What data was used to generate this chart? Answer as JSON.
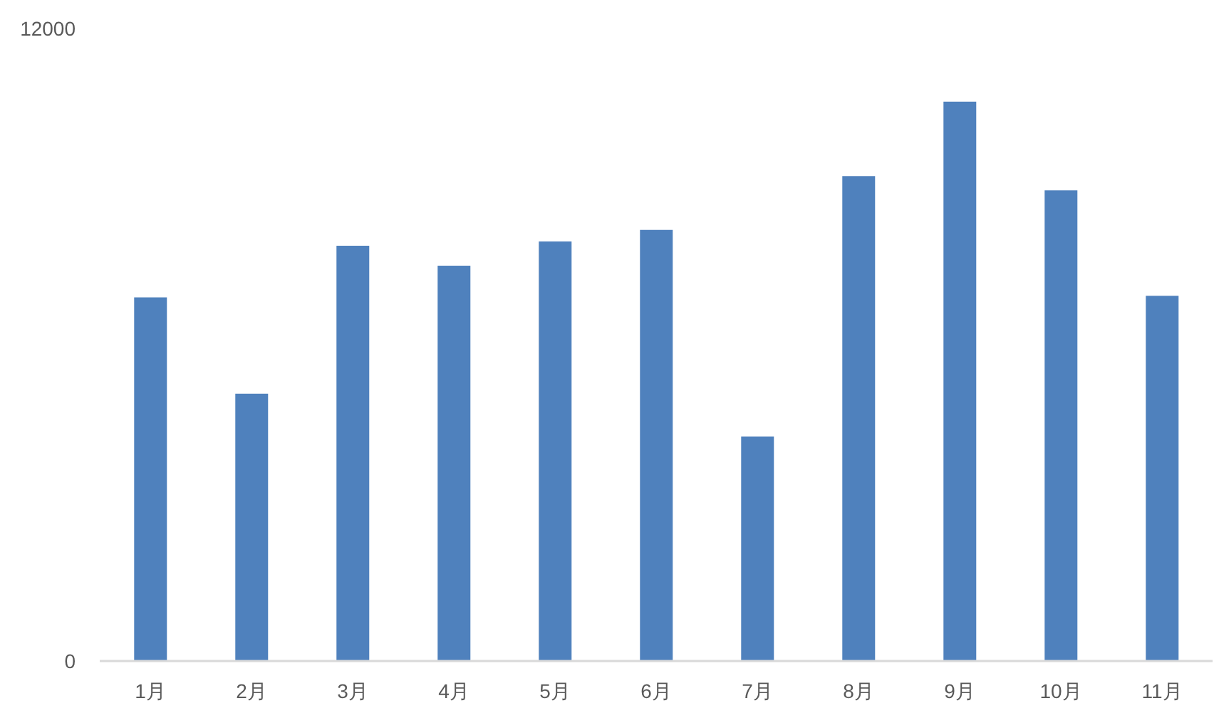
{
  "chart_data": {
    "type": "bar",
    "categories": [
      "1月",
      "2月",
      "3月",
      "4月",
      "5月",
      "6月",
      "7月",
      "8月",
      "9月",
      "10月",
      "11月"
    ],
    "values": [
      6900,
      5070,
      7880,
      7500,
      7960,
      8180,
      4260,
      9200,
      10610,
      8930,
      6930
    ],
    "color": "#4f81bd",
    "ylim": [
      0,
      12000
    ],
    "yticks": [
      0,
      12000
    ]
  }
}
